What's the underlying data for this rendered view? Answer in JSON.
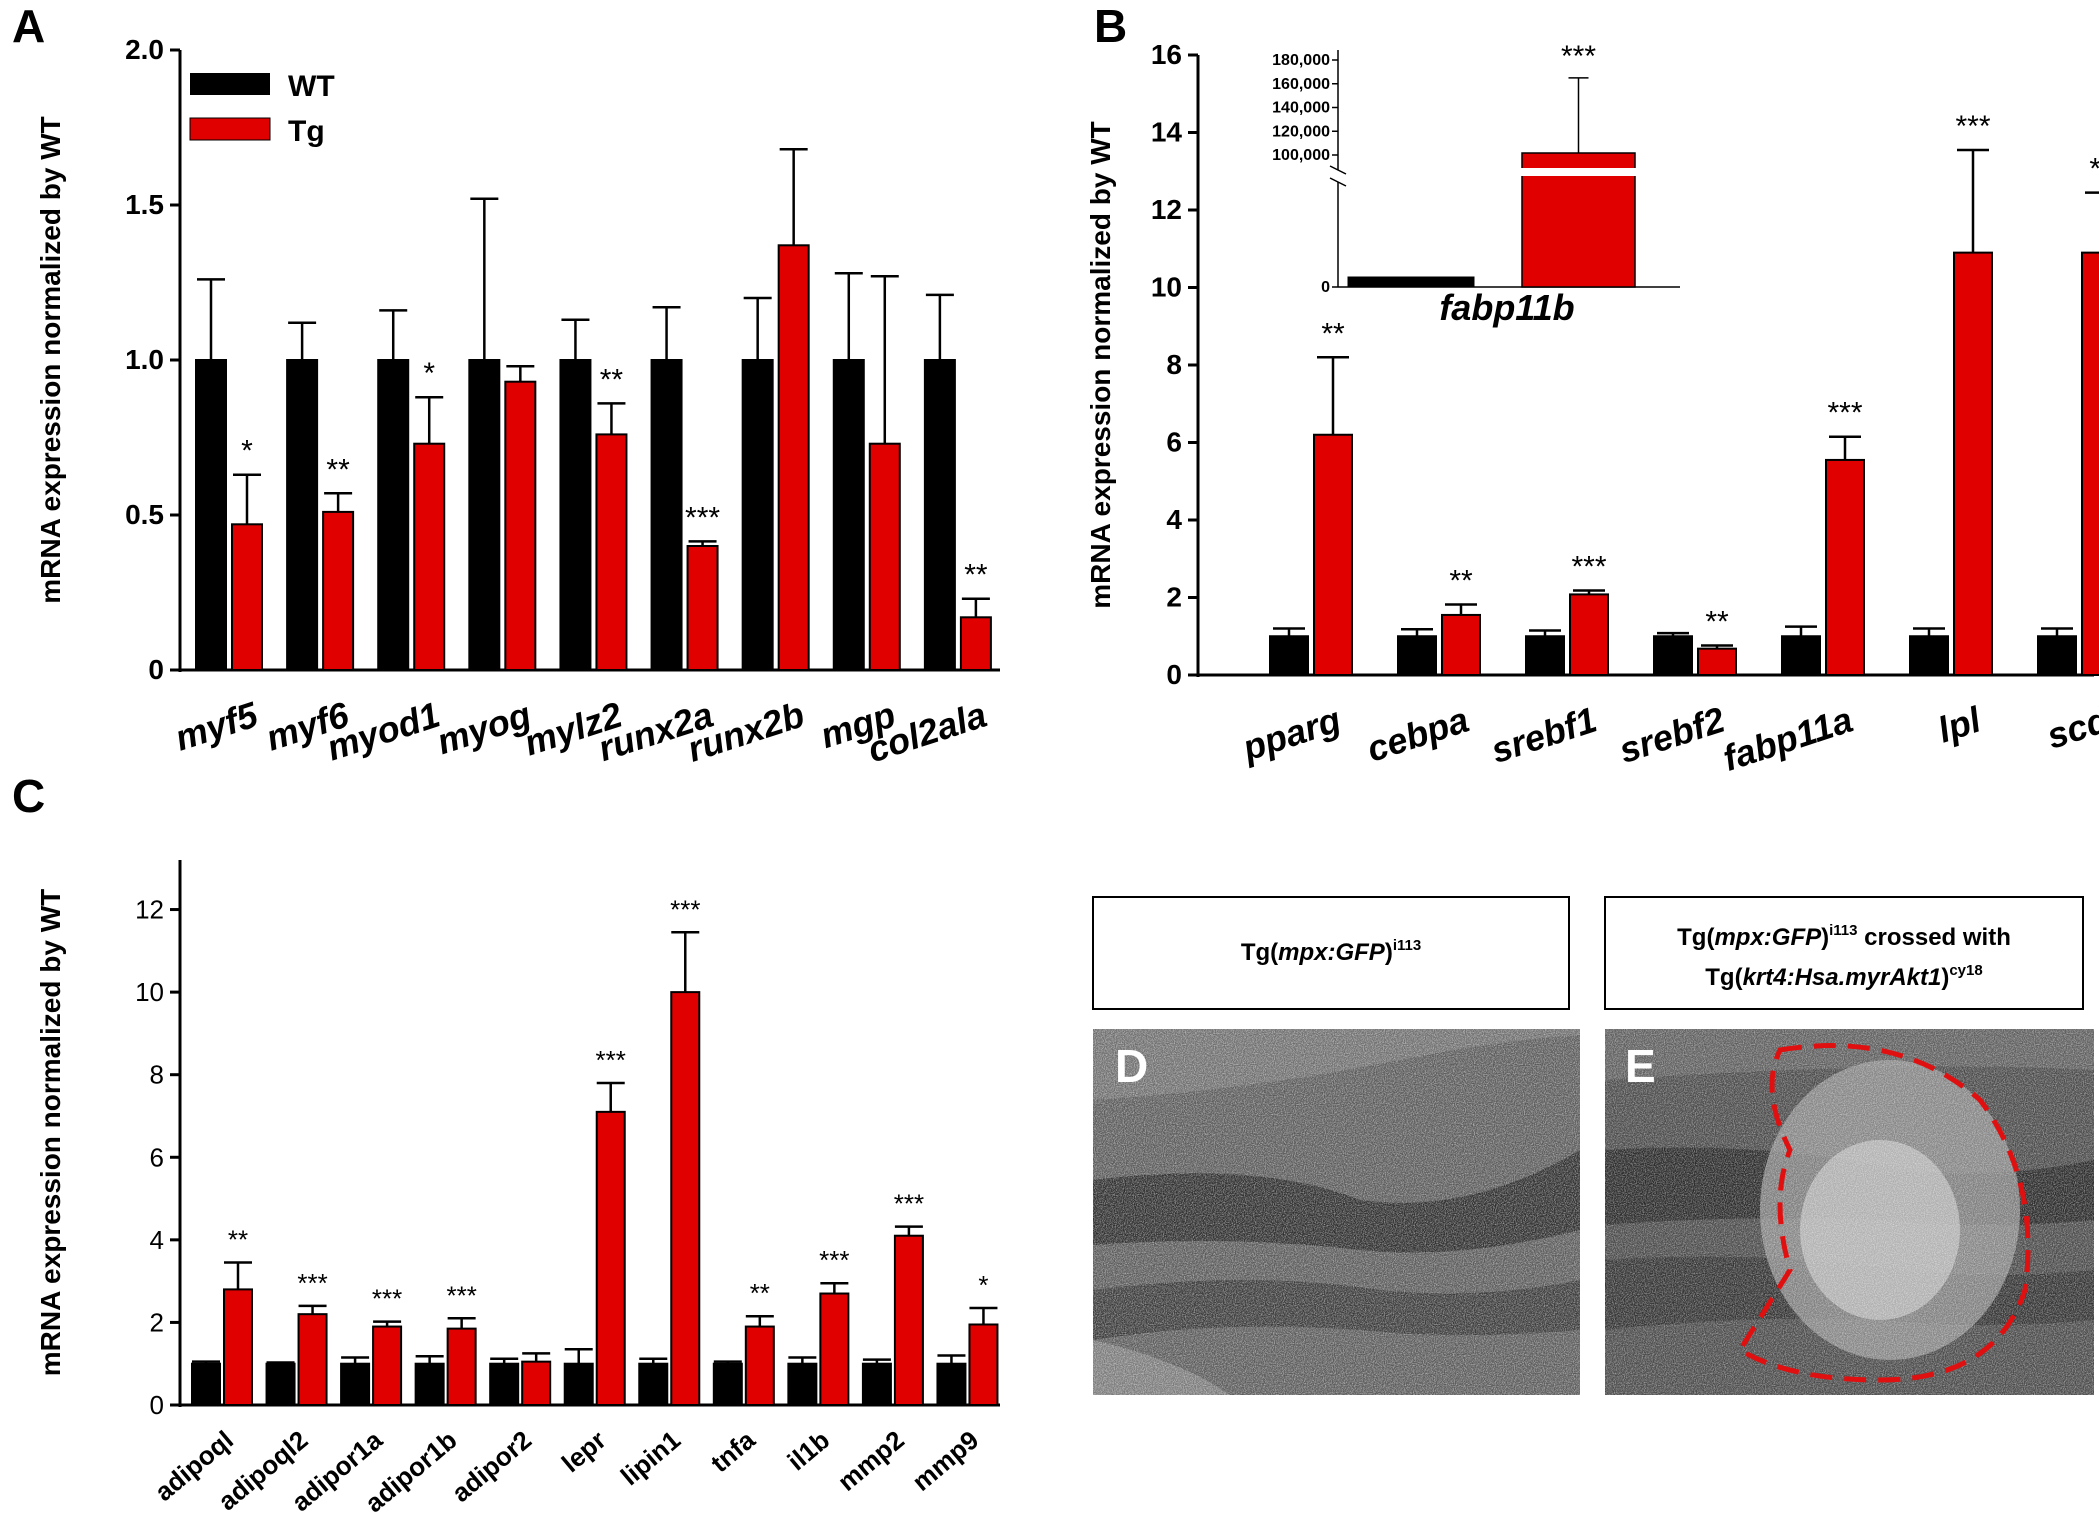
{
  "colors": {
    "wt": "#000000",
    "tg": "#e00000",
    "outline": "#000000",
    "dashed": "#e01010"
  },
  "legend": {
    "wt": "WT",
    "tg": "Tg"
  },
  "panels": {
    "A": "A",
    "B": "B",
    "C": "C",
    "D": "D",
    "E": "E"
  },
  "captions": {
    "d_text_pre": "Tg(",
    "d_text_it": "mpx:GFP",
    "d_text_post": ")",
    "d_sup": "i113",
    "e_line1_pre": "Tg(",
    "e_line1_it": "mpx:GFP",
    "e_line1_post": ")",
    "e_line1_sup": "i113",
    "e_line1_tail": " crossed with",
    "e_line2_pre": "Tg(",
    "e_line2_it": "krt4:Hsa.myrAkt1",
    "e_line2_post": ")",
    "e_line2_sup": "cy18"
  },
  "chart_data": [
    {
      "id": "A",
      "type": "bar",
      "ylabel": "mRNA expression normalized by WT",
      "ylim": [
        0,
        2.0
      ],
      "yticks": [
        "0",
        "0.5",
        "1.0",
        "1.5",
        "2.0"
      ],
      "categories": [
        "myf5",
        "myf6",
        "myod1",
        "myog",
        "mylz2",
        "runx2a",
        "runx2b",
        "mgp",
        "col2ala"
      ],
      "series": [
        {
          "name": "WT",
          "values": [
            1.0,
            1.0,
            1.0,
            1.0,
            1.0,
            1.0,
            1.0,
            1.0,
            1.0
          ],
          "errors": [
            0.26,
            0.12,
            0.16,
            0.52,
            0.13,
            0.17,
            0.2,
            0.28,
            0.21
          ]
        },
        {
          "name": "Tg",
          "values": [
            0.47,
            0.51,
            0.73,
            0.93,
            0.76,
            0.4,
            1.37,
            0.73,
            0.17
          ],
          "errors": [
            0.16,
            0.06,
            0.15,
            0.05,
            0.1,
            0.015,
            0.31,
            0.54,
            0.06
          ]
        }
      ],
      "significance": [
        "*",
        "**",
        "*",
        "",
        "**",
        "***",
        "",
        "",
        "**"
      ]
    },
    {
      "id": "B",
      "type": "bar",
      "ylabel": "mRNA expression normalized by WT",
      "ylim": [
        0,
        16
      ],
      "yticks": [
        "0",
        "2",
        "4",
        "6",
        "8",
        "10",
        "12",
        "14",
        "16"
      ],
      "categories": [
        "pparg",
        "cebpa",
        "srebf1",
        "srebf2",
        "fabp11a",
        "lpl",
        "scd"
      ],
      "series": [
        {
          "name": "WT",
          "values": [
            1.0,
            1.0,
            1.0,
            1.0,
            1.0,
            1.0,
            1.0
          ],
          "errors": [
            0.2,
            0.18,
            0.15,
            0.08,
            0.25,
            0.2,
            0.2
          ]
        },
        {
          "name": "Tg",
          "values": [
            6.2,
            1.55,
            2.08,
            0.68,
            5.55,
            10.9,
            10.9
          ],
          "errors": [
            2.0,
            0.27,
            0.1,
            0.08,
            0.6,
            2.65,
            1.55
          ]
        }
      ],
      "significance": [
        "**",
        "**",
        "***",
        "**",
        "***",
        "***",
        "**"
      ],
      "inset": {
        "category": "fabp11b",
        "yticks": [
          "0",
          "100,000",
          "120,000",
          "140,000",
          "160,000",
          "180,000"
        ],
        "wt_value": 1,
        "tg_value": "broken axis",
        "tg_error_top": 165000,
        "significance": "***"
      }
    },
    {
      "id": "C",
      "type": "bar",
      "ylabel": "mRNA expression normalized by WT",
      "ylim": [
        0,
        13.2
      ],
      "yticks": [
        "0",
        "2",
        "4",
        "6",
        "8",
        "10",
        "12"
      ],
      "categories": [
        "adipoql",
        "adipoql2",
        "adipor1a",
        "adipor1b",
        "adipor2",
        "lepr",
        "lipin1",
        "tnfa",
        "il1b",
        "mmp2",
        "mmp9"
      ],
      "series": [
        {
          "name": "WT",
          "values": [
            1.0,
            1.0,
            1.0,
            1.0,
            1.0,
            1.0,
            1.0,
            1.0,
            1.0,
            1.0,
            1.0
          ],
          "errors": [
            0.05,
            0.03,
            0.15,
            0.18,
            0.12,
            0.35,
            0.12,
            0.05,
            0.15,
            0.1,
            0.2
          ]
        },
        {
          "name": "Tg",
          "values": [
            2.8,
            2.2,
            1.9,
            1.85,
            1.05,
            7.1,
            10.0,
            1.9,
            2.7,
            4.1,
            1.95
          ]
        },
        {
          "name": "Tg_errors",
          "values": [
            0.65,
            0.2,
            0.12,
            0.25,
            0.2,
            0.7,
            1.45,
            0.25,
            0.25,
            0.22,
            0.4
          ]
        }
      ],
      "significance": [
        "**",
        "***",
        "***",
        "***",
        "",
        "***",
        "***",
        "**",
        "***",
        "***",
        "*"
      ]
    }
  ]
}
